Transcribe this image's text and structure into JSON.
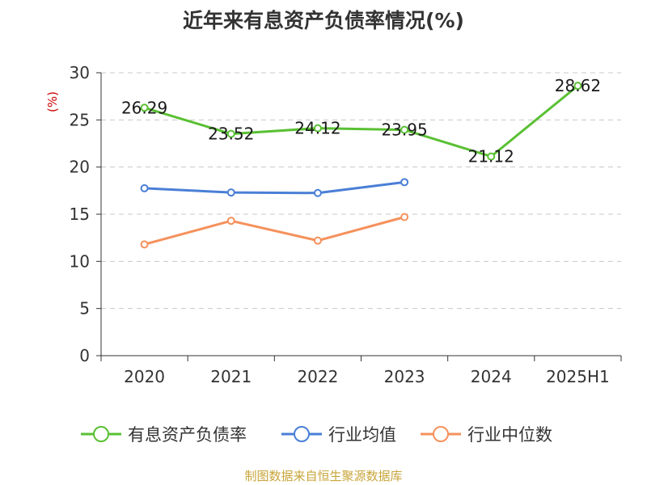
{
  "chart_data": {
    "type": "line",
    "title": "近年来有息资产负债率情况(%)",
    "ylabel": "(%)",
    "categories": [
      "2020",
      "2021",
      "2022",
      "2023",
      "2024",
      "2025H1"
    ],
    "ylim": [
      0,
      30
    ],
    "yticks": [
      0,
      5,
      10,
      15,
      20,
      25,
      30
    ],
    "grid": true,
    "legend_position": "bottom",
    "series": [
      {
        "name": "有息资产负债率",
        "color": "#5ac034",
        "values": [
          26.29,
          23.52,
          24.12,
          23.95,
          21.12,
          28.62
        ],
        "labels": [
          "26.29",
          "23.52",
          "24.12",
          "23.95",
          "21.12",
          "28.62"
        ]
      },
      {
        "name": "行业均值",
        "color": "#4a7fd6",
        "values": [
          17.75,
          17.3,
          17.25,
          18.4,
          null,
          null
        ]
      },
      {
        "name": "行业中位数",
        "color": "#f5915c",
        "values": [
          11.8,
          14.3,
          12.2,
          14.7,
          null,
          null
        ]
      }
    ]
  },
  "source": "制图数据来自恒生聚源数据库"
}
